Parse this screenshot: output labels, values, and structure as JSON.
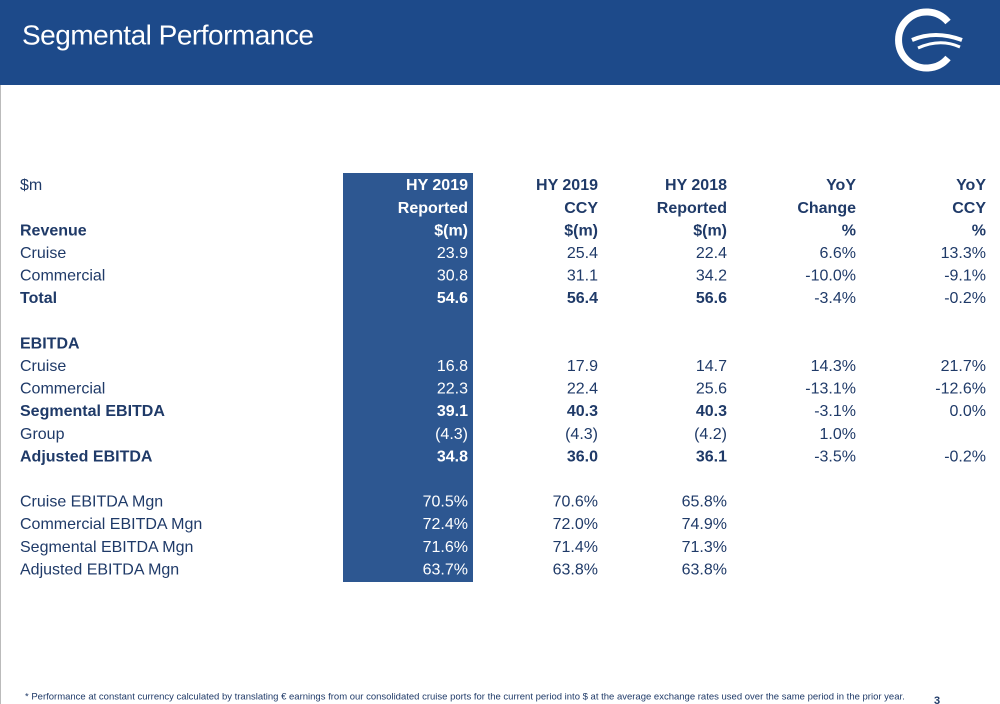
{
  "header": {
    "title": "Segmental Performance"
  },
  "table": {
    "unit": "$m",
    "columns": [
      [
        "HY 2019",
        "Reported"
      ],
      [
        "HY 2019",
        "CCY"
      ],
      [
        "HY 2018",
        "Reported"
      ],
      [
        "YoY",
        "Change"
      ],
      [
        "YoY",
        "CCY"
      ]
    ],
    "rows": [
      {
        "label": "Revenue",
        "cells": [
          "$(m)",
          "$(m)",
          "$(m)",
          "%",
          "%"
        ]
      },
      {
        "label": "Cruise",
        "cells": [
          "23.9",
          "25.4",
          "22.4",
          "6.6%",
          "13.3%"
        ]
      },
      {
        "label": "Commercial",
        "cells": [
          "30.8",
          "31.1",
          "34.2",
          "-10.0%",
          "-9.1%"
        ]
      },
      {
        "label": "Total",
        "cells": [
          "54.6",
          "56.4",
          "56.6",
          "-3.4%",
          "-0.2%"
        ]
      },
      {
        "label": "EBITDA",
        "cells": []
      },
      {
        "label": "Cruise",
        "cells": [
          "16.8",
          "17.9",
          "14.7",
          "14.3%",
          "21.7%"
        ]
      },
      {
        "label": "Commercial",
        "cells": [
          "22.3",
          "22.4",
          "25.6",
          "-13.1%",
          "-12.6%"
        ]
      },
      {
        "label": "Segmental EBITDA",
        "cells": [
          "39.1",
          "40.3",
          "40.3",
          "-3.1%",
          "0.0%"
        ]
      },
      {
        "label": "Group",
        "cells": [
          "(4.3)",
          "(4.3)",
          "(4.2)",
          "1.0%"
        ]
      },
      {
        "label": "Adjusted EBITDA",
        "cells": [
          "34.8",
          "36.0",
          "36.1",
          "-3.5%",
          "-0.2%"
        ]
      },
      {
        "label": "Cruise EBITDA Mgn",
        "cells": [
          "70.5%",
          "70.6%",
          "65.8%"
        ]
      },
      {
        "label": "Commercial EBITDA Mgn",
        "cells": [
          "72.4%",
          "72.0%",
          "74.9%"
        ]
      },
      {
        "label": "Segmental EBITDA Mgn",
        "cells": [
          "71.6%",
          "71.4%",
          "71.3%"
        ]
      },
      {
        "label": "Adjusted EBITDA Mgn",
        "cells": [
          "63.7%",
          "63.8%",
          "63.8%"
        ]
      }
    ]
  },
  "footnote": "* Performance at constant currency calculated by translating € earnings from our consolidated cruise ports for the current period into $ at the average exchange rates used over the same period in the prior year.",
  "page_number": "3"
}
